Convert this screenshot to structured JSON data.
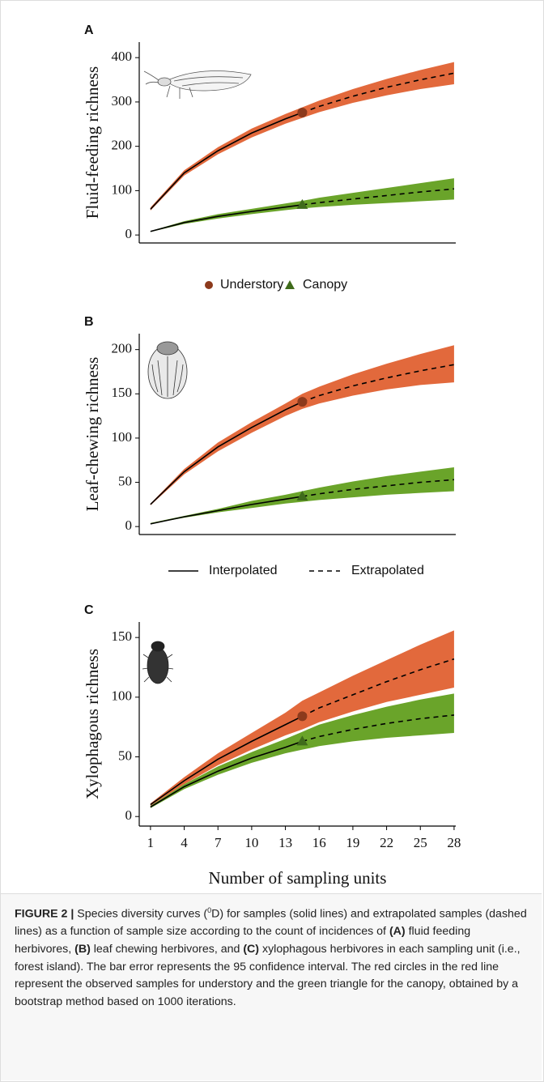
{
  "chart_data": [
    {
      "type": "line",
      "panel": "A",
      "ylabel": "Fluid-feeding richness",
      "x": [
        1,
        4,
        7,
        10,
        13,
        14.5,
        16,
        19,
        22,
        25,
        28
      ],
      "xlim": [
        0,
        28.15
      ],
      "ylim": [
        -18,
        435
      ],
      "yticks": [
        0,
        100,
        200,
        300,
        400
      ],
      "series": [
        {
          "name": "Understory",
          "line_color": "#000000",
          "band_color": "#e2693c",
          "marker_color": "#8c3a1c",
          "marker": "circle",
          "values": [
            58,
            140,
            190,
            230,
            262,
            276,
            null,
            null,
            null,
            null,
            null
          ],
          "extrapolated_values": [
            null,
            null,
            null,
            null,
            null,
            276,
            290,
            313,
            333,
            350,
            365
          ],
          "lower": [
            55,
            134,
            182,
            220,
            251,
            264,
            277,
            298,
            315,
            329,
            340
          ],
          "upper": [
            62,
            146,
            198,
            240,
            273,
            288,
            303,
            329,
            352,
            372,
            390
          ],
          "observed": {
            "x": 14.5,
            "value": 276
          }
        },
        {
          "name": "Canopy",
          "line_color": "#000000",
          "band_color": "#6aa42a",
          "marker_color": "#3f6b1b",
          "marker": "triangle",
          "values": [
            8,
            28,
            42,
            53,
            63,
            68,
            null,
            null,
            null,
            null,
            null
          ],
          "extrapolated_values": [
            null,
            null,
            null,
            null,
            null,
            68,
            73,
            81,
            89,
            97,
            104
          ],
          "lower": [
            7,
            25,
            37,
            47,
            56,
            60,
            63,
            68,
            72,
            76,
            80
          ],
          "upper": [
            9,
            31,
            47,
            59,
            71,
            77,
            84,
            95,
            106,
            117,
            128
          ],
          "observed": {
            "x": 14.5,
            "value": 68
          }
        }
      ]
    },
    {
      "type": "line",
      "panel": "B",
      "ylabel": "Leaf-chewing richness",
      "x": [
        1,
        4,
        7,
        10,
        13,
        14.5,
        16,
        19,
        22,
        25,
        28
      ],
      "xlim": [
        0,
        28.15
      ],
      "ylim": [
        -9,
        218
      ],
      "yticks": [
        0,
        50,
        100,
        150,
        200
      ],
      "series": [
        {
          "name": "Understory",
          "line_color": "#000000",
          "band_color": "#e2693c",
          "marker_color": "#8c3a1c",
          "marker": "circle",
          "values": [
            25,
            62,
            90,
            112,
            132,
            141,
            null,
            null,
            null,
            null,
            null
          ],
          "extrapolated_values": [
            null,
            null,
            null,
            null,
            null,
            141,
            148,
            159,
            168,
            176,
            183
          ],
          "lower": [
            24,
            59,
            85,
            106,
            125,
            133,
            139,
            148,
            155,
            160,
            163
          ],
          "upper": [
            26,
            65,
            95,
            118,
            139,
            150,
            158,
            172,
            184,
            195,
            205
          ],
          "observed": {
            "x": 14.5,
            "value": 141
          }
        },
        {
          "name": "Canopy",
          "line_color": "#000000",
          "band_color": "#6aa42a",
          "marker_color": "#3f6b1b",
          "marker": "triangle",
          "values": [
            3,
            11,
            18,
            25,
            31,
            34,
            null,
            null,
            null,
            null,
            null
          ],
          "extrapolated_values": [
            null,
            null,
            null,
            null,
            null,
            34,
            37,
            42,
            46,
            50,
            53
          ],
          "lower": [
            3,
            10,
            16,
            21,
            26,
            28,
            30,
            33,
            36,
            38,
            40
          ],
          "upper": [
            4,
            12,
            20,
            29,
            36,
            40,
            44,
            51,
            57,
            62,
            67
          ],
          "observed": {
            "x": 14.5,
            "value": 34
          }
        }
      ]
    },
    {
      "type": "line",
      "panel": "C",
      "ylabel": "Xylophagous richness",
      "xlabel": "Number of sampling units",
      "x": [
        1,
        4,
        7,
        10,
        13,
        14.5,
        16,
        19,
        22,
        25,
        28
      ],
      "xlim": [
        0,
        28.15
      ],
      "xticks": [
        1,
        4,
        7,
        10,
        13,
        16,
        19,
        22,
        25,
        28
      ],
      "ylim": [
        -8,
        163
      ],
      "yticks": [
        0,
        50,
        100,
        150
      ],
      "series": [
        {
          "name": "Understory",
          "line_color": "#000000",
          "band_color": "#e2693c",
          "marker_color": "#8c3a1c",
          "marker": "circle",
          "values": [
            10,
            30,
            48,
            63,
            77,
            84,
            null,
            null,
            null,
            null,
            null
          ],
          "extrapolated_values": [
            null,
            null,
            null,
            null,
            null,
            84,
            91,
            102,
            113,
            123,
            132
          ],
          "lower": [
            9,
            27,
            43,
            56,
            68,
            73,
            79,
            88,
            96,
            102,
            108
          ],
          "upper": [
            11,
            33,
            53,
            70,
            87,
            97,
            104,
            118,
            131,
            144,
            156
          ],
          "observed": {
            "x": 14.5,
            "value": 84
          }
        },
        {
          "name": "Canopy",
          "line_color": "#000000",
          "band_color": "#6aa42a",
          "marker_color": "#3f6b1b",
          "marker": "triangle",
          "values": [
            8,
            25,
            38,
            49,
            58,
            63,
            null,
            null,
            null,
            null,
            null
          ],
          "extrapolated_values": [
            null,
            null,
            null,
            null,
            null,
            63,
            67,
            73,
            78,
            82,
            85
          ],
          "lower": [
            7,
            23,
            35,
            45,
            53,
            56,
            59,
            63,
            66,
            68,
            70
          ],
          "upper": [
            9,
            27,
            42,
            54,
            65,
            71,
            77,
            85,
            92,
            98,
            103
          ],
          "observed": {
            "x": 14.5,
            "value": 63
          }
        }
      ]
    }
  ],
  "line_legend": [
    "Interpolated",
    "Extrapolated"
  ],
  "caption": {
    "label": "FIGURE 2 |",
    "parts": [
      " Species diversity curves (",
      "0",
      "D) for samples (solid lines) and extrapolated samples (dashed lines) as a function of sample size according to the count of incidences of ",
      "(A)",
      " fluid feeding herbivores, ",
      "(B)",
      " leaf chewing herbivores, and ",
      "(C)",
      " xylophagous herbivores in each sampling unit (i.e., forest island). The bar error represents the 95 confidence interval. The red circles in the red line represent the observed samples for understory and the green triangle for the canopy, obtained by a bootstrap method based on 1000 iterations."
    ]
  }
}
